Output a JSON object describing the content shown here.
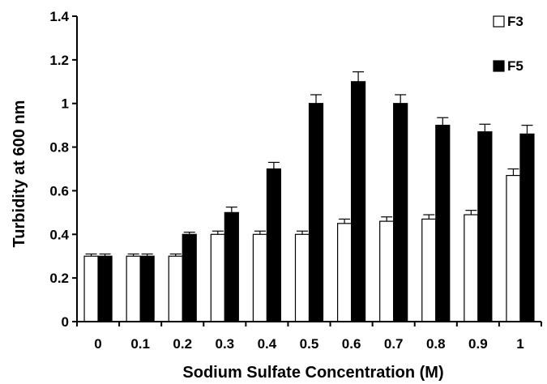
{
  "chart_data": {
    "type": "bar",
    "xlabel": "Sodium Sulfate Concentration (M)",
    "ylabel": "Turbidity at 600 nm",
    "categories": [
      "0",
      "0.1",
      "0.2",
      "0.3",
      "0.4",
      "0.5",
      "0.6",
      "0.7",
      "0.8",
      "0.9",
      "1"
    ],
    "ylim": [
      0,
      1.4
    ],
    "yticks": [
      "0",
      "0.2",
      "0.4",
      "0.6",
      "0.8",
      "1",
      "1.2",
      "1.4"
    ],
    "grid": false,
    "legend_position": "top-right",
    "series": [
      {
        "name": "F3",
        "color": "#ffffff",
        "values": [
          0.3,
          0.3,
          0.3,
          0.4,
          0.4,
          0.4,
          0.45,
          0.46,
          0.47,
          0.49,
          0.67
        ],
        "errors": [
          0.01,
          0.01,
          0.01,
          0.015,
          0.015,
          0.015,
          0.02,
          0.02,
          0.02,
          0.02,
          0.03
        ]
      },
      {
        "name": "F5",
        "color": "#000000",
        "values": [
          0.3,
          0.3,
          0.4,
          0.5,
          0.7,
          1.0,
          1.1,
          1.0,
          0.9,
          0.87,
          0.86
        ],
        "errors": [
          0.01,
          0.01,
          0.01,
          0.025,
          0.03,
          0.04,
          0.045,
          0.04,
          0.035,
          0.035,
          0.04
        ]
      }
    ]
  }
}
